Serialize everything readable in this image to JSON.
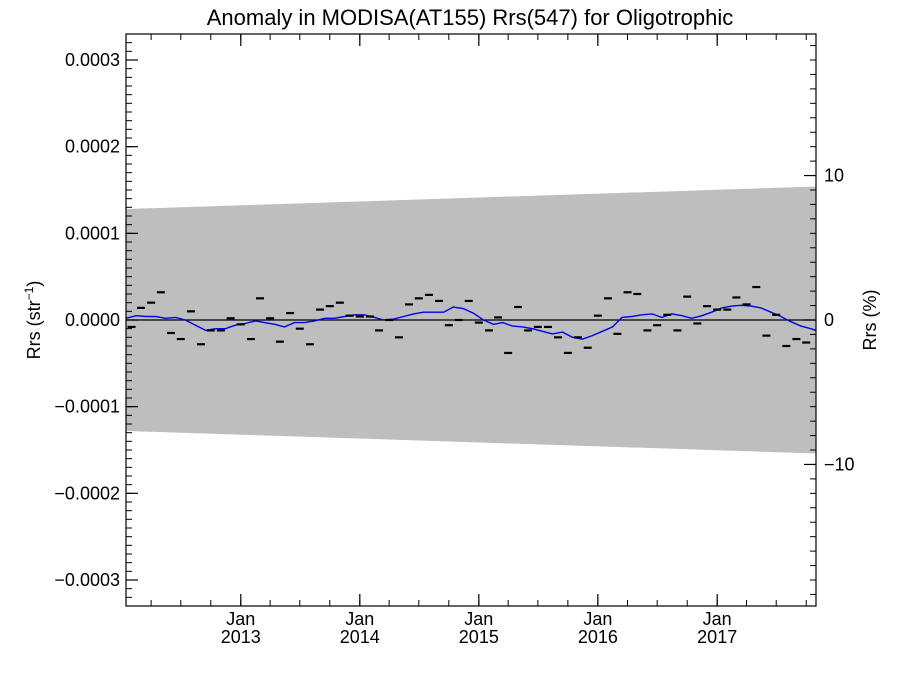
{
  "chart_data": {
    "type": "line",
    "title": "Anomaly in MODISA(AT155) Rrs(547) for Oligotrophic",
    "ylabel_left": "Rrs (str",
    "ylabel_left_sup": "−1",
    "ylabel_left_close": ")",
    "ylabel_right": "Rrs (%)",
    "ylim_left": [
      -0.00033,
      0.00033
    ],
    "ylim_right": [
      -19.8,
      19.8
    ],
    "xlim": [
      "2012-01-15",
      "2017-10-31"
    ],
    "yticks_left": [
      {
        "value": 0.0003,
        "label": "0.0003"
      },
      {
        "value": 0.0002,
        "label": "0.0002"
      },
      {
        "value": 0.0001,
        "label": "0.0001"
      },
      {
        "value": 0.0,
        "label": "0.0000"
      },
      {
        "value": -0.0001,
        "label": "−0.0001"
      },
      {
        "value": -0.0002,
        "label": "−0.0002"
      },
      {
        "value": -0.0003,
        "label": "−0.0003"
      }
    ],
    "yticks_right": [
      {
        "value": 10,
        "label": "10"
      },
      {
        "value": 0,
        "label": "0"
      },
      {
        "value": -10,
        "label": "−10"
      }
    ],
    "xticks_major": [
      {
        "date": "2013-01-01",
        "label1": "Jan",
        "label2": "2013"
      },
      {
        "date": "2014-01-01",
        "label1": "Jan",
        "label2": "2014"
      },
      {
        "date": "2015-01-01",
        "label1": "Jan",
        "label2": "2015"
      },
      {
        "date": "2016-01-01",
        "label1": "Jan",
        "label2": "2016"
      },
      {
        "date": "2017-01-01",
        "label1": "Jan",
        "label2": "2017"
      }
    ],
    "uncertainty_band": {
      "x": [
        "2012-01-15",
        "2017-10-31"
      ],
      "upper": [
        0.000128,
        0.000154
      ],
      "lower": [
        -0.000128,
        -0.000154
      ],
      "color": "#bebebe"
    },
    "series": [
      {
        "type": "monthly-markers",
        "color": "#000000",
        "x": [
          "2012-02-01",
          "2012-03-01",
          "2012-04-01",
          "2012-05-01",
          "2012-06-01",
          "2012-07-01",
          "2012-08-01",
          "2012-09-01",
          "2012-10-01",
          "2012-11-01",
          "2012-12-01",
          "2013-01-01",
          "2013-02-01",
          "2013-03-01",
          "2013-04-01",
          "2013-05-01",
          "2013-06-01",
          "2013-07-01",
          "2013-08-01",
          "2013-09-01",
          "2013-10-01",
          "2013-11-01",
          "2013-12-01",
          "2014-01-01",
          "2014-02-01",
          "2014-03-01",
          "2014-04-01",
          "2014-05-01",
          "2014-06-01",
          "2014-07-01",
          "2014-08-01",
          "2014-09-01",
          "2014-10-01",
          "2014-11-01",
          "2014-12-01",
          "2015-01-01",
          "2015-02-01",
          "2015-03-01",
          "2015-04-01",
          "2015-05-01",
          "2015-06-01",
          "2015-07-01",
          "2015-08-01",
          "2015-09-01",
          "2015-10-01",
          "2015-11-01",
          "2015-12-01",
          "2016-01-01",
          "2016-02-01",
          "2016-03-01",
          "2016-04-01",
          "2016-05-01",
          "2016-06-01",
          "2016-07-01",
          "2016-08-01",
          "2016-09-01",
          "2016-10-01",
          "2016-11-01",
          "2016-12-01",
          "2017-01-01",
          "2017-02-01",
          "2017-03-01",
          "2017-04-01",
          "2017-05-01",
          "2017-06-01",
          "2017-07-01",
          "2017-08-01",
          "2017-09-01",
          "2017-10-01"
        ],
        "values": [
          -8e-06,
          1.4e-05,
          2e-05,
          3.2e-05,
          -1.5e-05,
          -2.2e-05,
          1e-05,
          -2.8e-05,
          -1.2e-05,
          -1.2e-05,
          2e-06,
          -5e-06,
          -2.2e-05,
          2.5e-05,
          2e-06,
          -2.5e-05,
          8e-06,
          -1e-05,
          -2.8e-05,
          1.2e-05,
          1.6e-05,
          2e-05,
          5e-06,
          4e-06,
          4e-06,
          -1.2e-05,
          0.0,
          -2e-05,
          1.8e-05,
          2.5e-05,
          2.9e-05,
          2.2e-05,
          -6e-06,
          0.0,
          2.2e-05,
          -3e-06,
          -1.2e-05,
          3e-06,
          -3.8e-05,
          1.5e-05,
          -1.2e-05,
          -8e-06,
          -8e-06,
          -2e-05,
          -3.8e-05,
          -2e-05,
          -3.2e-05,
          5e-06,
          2.5e-05,
          -1.6e-05,
          3.2e-05,
          3e-05,
          -1.2e-05,
          -6e-06,
          6e-06,
          -1.2e-05,
          2.7e-05,
          -4e-06,
          1.6e-05,
          1.2e-05,
          1.2e-05,
          2.6e-05,
          1.8e-05,
          3.8e-05,
          -1.8e-05,
          6e-06,
          -3e-05,
          -2.2e-05,
          -2.6e-05
        ]
      },
      {
        "type": "line",
        "color": "#0000ee",
        "x": [
          "2012-01-15",
          "2012-02-15",
          "2012-03-15",
          "2012-04-15",
          "2012-05-15",
          "2012-06-15",
          "2012-07-15",
          "2012-08-15",
          "2012-09-15",
          "2012-10-15",
          "2012-11-15",
          "2012-12-15",
          "2013-01-15",
          "2013-02-15",
          "2013-03-15",
          "2013-04-15",
          "2013-05-15",
          "2013-06-15",
          "2013-07-15",
          "2013-08-15",
          "2013-09-15",
          "2013-10-15",
          "2013-11-15",
          "2013-12-15",
          "2014-01-15",
          "2014-02-15",
          "2014-03-15",
          "2014-04-15",
          "2014-05-15",
          "2014-06-15",
          "2014-07-15",
          "2014-08-15",
          "2014-09-15",
          "2014-10-15",
          "2014-11-15",
          "2014-12-15",
          "2015-01-15",
          "2015-02-15",
          "2015-03-15",
          "2015-04-15",
          "2015-05-15",
          "2015-06-15",
          "2015-07-15",
          "2015-08-15",
          "2015-09-15",
          "2015-10-15",
          "2015-11-15",
          "2015-12-15",
          "2016-01-15",
          "2016-02-15",
          "2016-03-15",
          "2016-04-15",
          "2016-05-15",
          "2016-06-15",
          "2016-07-15",
          "2016-08-15",
          "2016-09-15",
          "2016-10-15",
          "2016-11-15",
          "2016-12-15",
          "2017-01-15",
          "2017-02-15",
          "2017-03-15",
          "2017-04-15",
          "2017-05-15",
          "2017-06-15",
          "2017-07-15",
          "2017-08-15",
          "2017-09-15",
          "2017-10-15",
          "2017-10-31"
        ],
        "values": [
          2e-06,
          5e-06,
          4e-06,
          4e-06,
          2e-06,
          3e-06,
          0.0,
          -6e-06,
          -1.2e-05,
          -1e-05,
          -1e-05,
          -6e-06,
          -4e-06,
          -1e-06,
          -3e-06,
          -5e-06,
          -8e-06,
          -3e-06,
          -3e-06,
          -1e-06,
          2e-06,
          2e-06,
          4e-06,
          6e-06,
          6e-06,
          3e-06,
          0.0,
          1e-06,
          4e-06,
          7e-06,
          9e-06,
          9e-06,
          9e-06,
          1.5e-05,
          1.3e-05,
          8e-06,
          0.0,
          -5e-06,
          -3e-06,
          -7e-06,
          -8e-06,
          -1e-05,
          -1.3e-05,
          -1.6e-05,
          -1.4e-05,
          -2e-05,
          -2.2e-05,
          -1.8e-05,
          -1.3e-05,
          -8e-06,
          3e-06,
          4e-06,
          6e-06,
          7e-06,
          3e-06,
          7e-06,
          5e-06,
          2e-06,
          5e-06,
          9e-06,
          1.4e-05,
          1.6e-05,
          1.7e-05,
          1.6e-05,
          1.4e-05,
          9e-06,
          4e-06,
          -2e-06,
          -7e-06,
          -1e-05,
          -1.2e-05
        ]
      }
    ],
    "zero_line": 0,
    "grid": false
  }
}
